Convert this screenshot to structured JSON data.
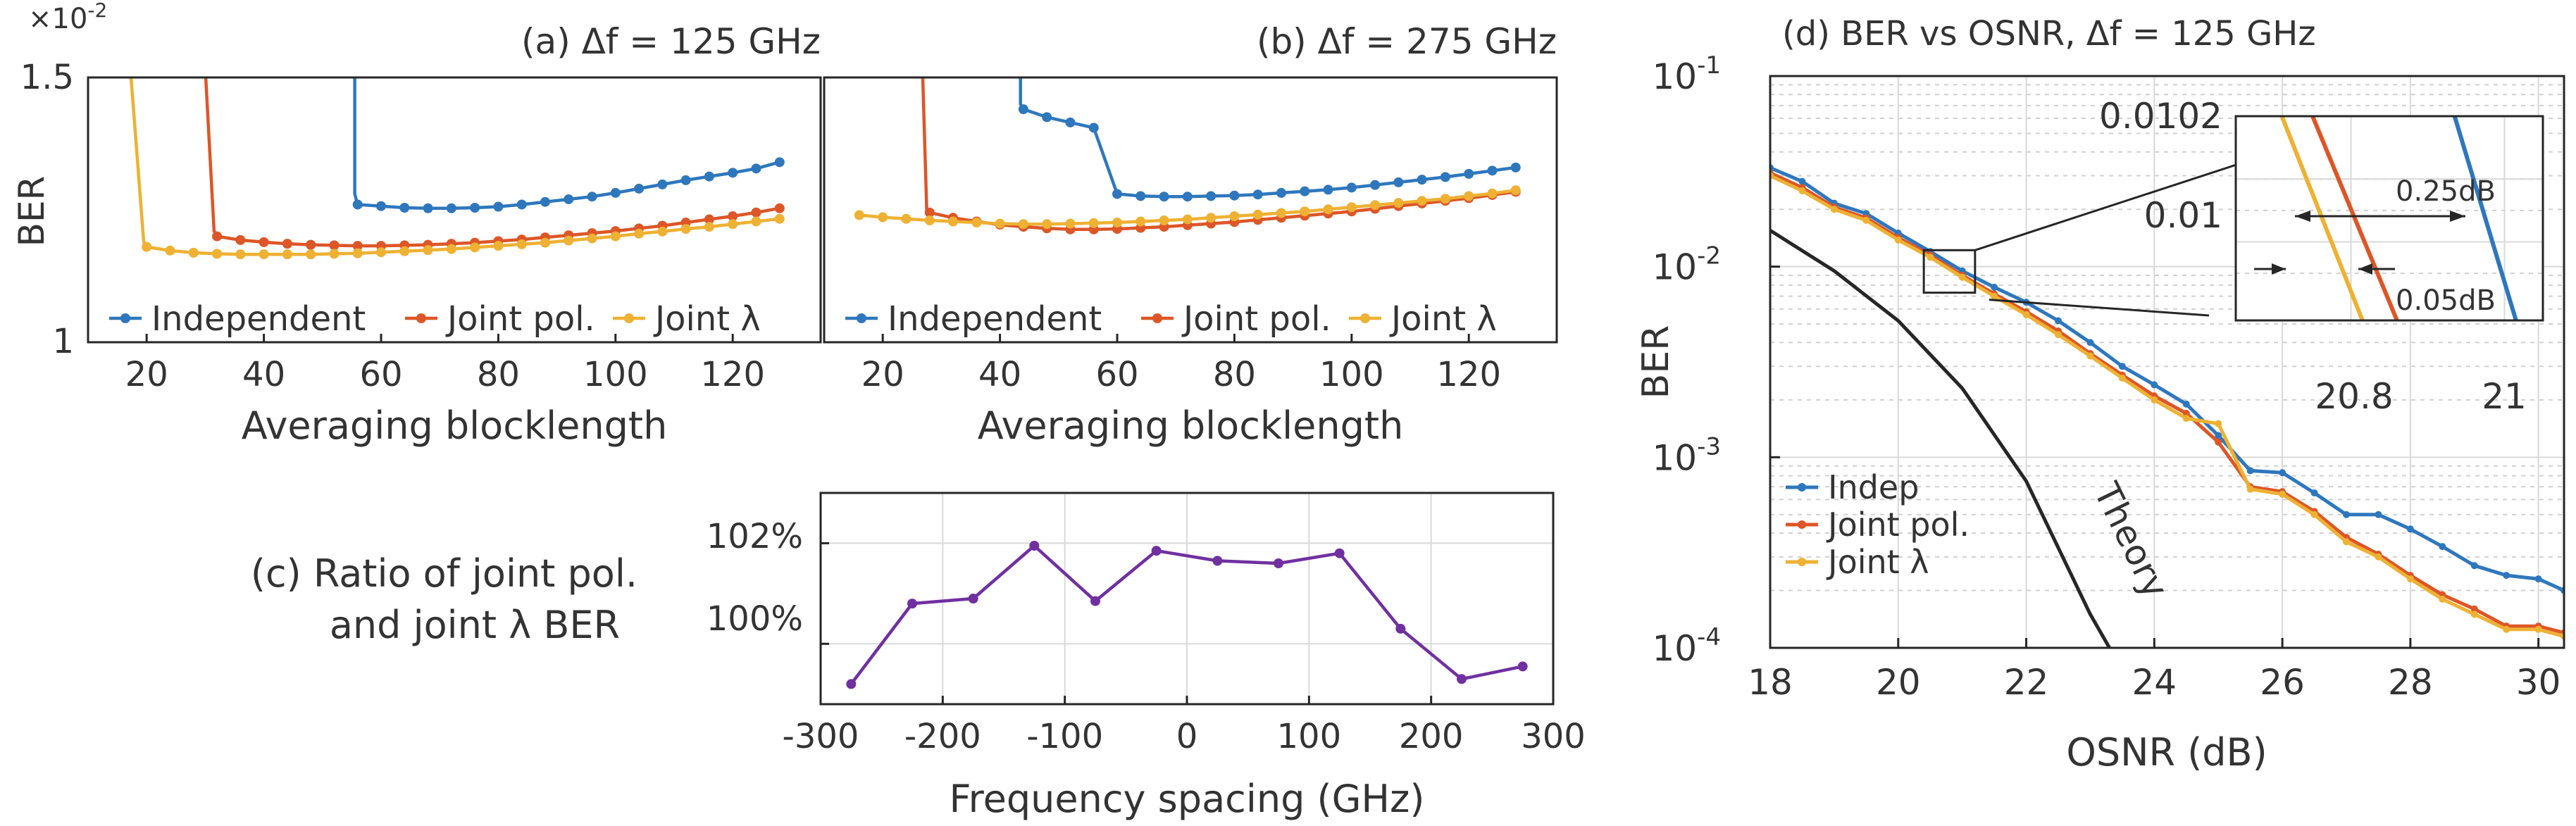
{
  "colors": {
    "independent": "#2E77BD",
    "joint_pol": "#DD5627",
    "joint_lambda": "#EEB133",
    "ratio": "#7030A0",
    "theory": "#262626",
    "grid": "#d9d9d9",
    "axis": "#262626"
  },
  "chart_data": [
    {
      "id": "a",
      "type": "line",
      "title": "(a) Δf = 125 GHz",
      "xlabel": "Averaging blocklength",
      "ylabel": "BER",
      "y_multiplier": "×10",
      "y_multiplier_exp": "-2",
      "xlim": [
        10,
        135
      ],
      "ylim": [
        1.0,
        1.5
      ],
      "xticks": [
        20,
        40,
        60,
        80,
        100,
        120
      ],
      "yticks": [
        1,
        1.5
      ],
      "ytick_labels": [
        "1",
        "1.5"
      ],
      "grid": false,
      "legend_position": "bottom",
      "series": [
        {
          "name": "Independent",
          "color_key": "independent",
          "steep": {
            "x": [
              55.5,
              55.5
            ],
            "y": [
              1.62,
              1.28
            ]
          },
          "x": [
            56,
            60,
            64,
            68,
            72,
            76,
            80,
            84,
            88,
            92,
            96,
            100,
            104,
            108,
            112,
            116,
            120,
            124,
            128
          ],
          "y": [
            1.26,
            1.257,
            1.254,
            1.253,
            1.253,
            1.254,
            1.256,
            1.26,
            1.265,
            1.27,
            1.275,
            1.282,
            1.29,
            1.298,
            1.306,
            1.313,
            1.32,
            1.328,
            1.34
          ]
        },
        {
          "name": "Joint pol.",
          "color_key": "joint_pol",
          "steep": {
            "x": [
              29.5,
              31.5
            ],
            "y": [
              1.62,
              1.21
            ]
          },
          "x": [
            32,
            36,
            40,
            44,
            48,
            52,
            56,
            60,
            64,
            68,
            72,
            76,
            80,
            84,
            88,
            92,
            96,
            100,
            104,
            108,
            112,
            116,
            120,
            124,
            128
          ],
          "y": [
            1.2,
            1.193,
            1.189,
            1.186,
            1.184,
            1.183,
            1.182,
            1.182,
            1.183,
            1.184,
            1.186,
            1.188,
            1.191,
            1.194,
            1.198,
            1.202,
            1.206,
            1.21,
            1.215,
            1.22,
            1.226,
            1.232,
            1.238,
            1.245,
            1.253
          ]
        },
        {
          "name": "Joint λ",
          "color_key": "joint_lambda",
          "steep": {
            "x": [
              16.5,
              19.5
            ],
            "y": [
              1.62,
              1.19
            ]
          },
          "x": [
            20,
            24,
            28,
            32,
            36,
            40,
            44,
            48,
            52,
            56,
            60,
            64,
            68,
            72,
            76,
            80,
            84,
            88,
            92,
            96,
            100,
            104,
            108,
            112,
            116,
            120,
            124,
            128
          ],
          "y": [
            1.18,
            1.173,
            1.169,
            1.167,
            1.166,
            1.166,
            1.166,
            1.166,
            1.167,
            1.168,
            1.17,
            1.172,
            1.174,
            1.176,
            1.179,
            1.182,
            1.185,
            1.188,
            1.192,
            1.196,
            1.2,
            1.205,
            1.209,
            1.214,
            1.218,
            1.223,
            1.228,
            1.233
          ]
        }
      ]
    },
    {
      "id": "b",
      "type": "line",
      "title": "(b) Δf = 275 GHz",
      "xlabel": "Averaging blocklength",
      "ylabel": "",
      "xlim": [
        10,
        135
      ],
      "ylim": [
        1.0,
        1.5
      ],
      "xticks": [
        20,
        40,
        60,
        80,
        100,
        120
      ],
      "grid": false,
      "legend_position": "bottom",
      "series": [
        {
          "name": "Independent",
          "color_key": "independent",
          "steep": {
            "x": [
              43.5,
              43.5
            ],
            "y": [
              1.62,
              1.45
            ]
          },
          "x": [
            44,
            48,
            52,
            56,
            60,
            64,
            68,
            72,
            76,
            80,
            84,
            88,
            92,
            96,
            100,
            104,
            108,
            112,
            116,
            120,
            124,
            128
          ],
          "y": [
            1.44,
            1.425,
            1.415,
            1.405,
            1.28,
            1.276,
            1.275,
            1.275,
            1.276,
            1.277,
            1.279,
            1.282,
            1.285,
            1.288,
            1.292,
            1.297,
            1.302,
            1.307,
            1.312,
            1.318,
            1.324,
            1.33
          ]
        },
        {
          "name": "Joint pol.",
          "color_key": "joint_pol",
          "steep": {
            "x": [
              26.5,
              27.5
            ],
            "y": [
              1.62,
              1.25
            ]
          },
          "x": [
            28,
            32,
            36,
            40,
            44,
            48,
            52,
            56,
            60,
            64,
            68,
            72,
            76,
            80,
            84,
            88,
            92,
            96,
            100,
            104,
            108,
            112,
            116,
            120,
            124,
            128
          ],
          "y": [
            1.245,
            1.235,
            1.228,
            1.222,
            1.218,
            1.215,
            1.213,
            1.213,
            1.214,
            1.216,
            1.218,
            1.221,
            1.224,
            1.227,
            1.231,
            1.235,
            1.239,
            1.243,
            1.247,
            1.252,
            1.257,
            1.262,
            1.267,
            1.272,
            1.278,
            1.284
          ]
        },
        {
          "name": "Joint λ",
          "color_key": "joint_lambda",
          "steep": {
            "x": [
              16,
              16
            ],
            "y": [
              1.24,
              1.24
            ]
          },
          "x": [
            16,
            20,
            24,
            28,
            32,
            36,
            40,
            44,
            48,
            52,
            56,
            60,
            64,
            68,
            72,
            76,
            80,
            84,
            88,
            92,
            96,
            100,
            104,
            108,
            112,
            116,
            120,
            124,
            128
          ],
          "y": [
            1.24,
            1.236,
            1.233,
            1.23,
            1.228,
            1.226,
            1.224,
            1.223,
            1.223,
            1.224,
            1.225,
            1.226,
            1.228,
            1.23,
            1.232,
            1.235,
            1.238,
            1.241,
            1.244,
            1.247,
            1.251,
            1.255,
            1.259,
            1.263,
            1.267,
            1.271,
            1.276,
            1.281,
            1.287
          ]
        }
      ]
    },
    {
      "id": "c",
      "type": "line",
      "title": "(c) Ratio of joint pol.",
      "title_line2": "and joint λ BER",
      "xlabel": "Frequency spacing (GHz)",
      "ylabel": "",
      "xlim": [
        -300,
        300
      ],
      "ylim": [
        98.8,
        103
      ],
      "xticks": [
        -300,
        -200,
        -100,
        0,
        100,
        200,
        300
      ],
      "yticks": [
        100,
        102
      ],
      "ytick_labels": [
        "100%",
        "102%"
      ],
      "grid": true,
      "series": [
        {
          "name": "Ratio",
          "color_key": "ratio",
          "x": [
            -275,
            -225,
            -175,
            -125,
            -75,
            -25,
            25,
            75,
            125,
            175,
            225,
            275
          ],
          "y": [
            99.2,
            100.8,
            100.9,
            101.95,
            100.85,
            101.85,
            101.65,
            101.6,
            101.8,
            100.3,
            99.3,
            99.55
          ]
        }
      ]
    },
    {
      "id": "d",
      "type": "line",
      "title": "(d) BER vs OSNR, Δf = 125 GHz",
      "xlabel": "OSNR (dB)",
      "ylabel": "BER",
      "yscale": "log",
      "xlim": [
        18,
        30.4
      ],
      "ylim": [
        0.0001,
        0.1
      ],
      "xticks": [
        18,
        20,
        22,
        24,
        26,
        28,
        30
      ],
      "yticks_exp": [
        -1,
        -2,
        -3,
        -4
      ],
      "ytick_base": "10",
      "grid": true,
      "legend_position": "bottom-left",
      "series": [
        {
          "name": "Indep",
          "color_key": "independent",
          "x": [
            18,
            18.5,
            19,
            19.5,
            20,
            20.5,
            21,
            21.5,
            22,
            22.5,
            23,
            23.5,
            24,
            24.5,
            25,
            25.5,
            26,
            26.5,
            27,
            27.5,
            28,
            28.5,
            29,
            29.5,
            30,
            30.4
          ],
          "y": [
            0.033,
            0.028,
            0.0215,
            0.019,
            0.015,
            0.012,
            0.0095,
            0.0078,
            0.0065,
            0.0052,
            0.004,
            0.003,
            0.0024,
            0.0019,
            0.0013,
            0.00085,
            0.00083,
            0.00065,
            0.0005,
            0.0005,
            0.00042,
            0.00034,
            0.00027,
            0.00024,
            0.00023,
            0.0002
          ]
        },
        {
          "name": "Joint pol.",
          "color_key": "joint_pol",
          "x": [
            18,
            18.5,
            19,
            19.5,
            20,
            20.5,
            21,
            21.5,
            22,
            22.5,
            23,
            23.5,
            24,
            24.5,
            25,
            25.5,
            26,
            26.5,
            27,
            27.5,
            28,
            28.5,
            29,
            29.5,
            30,
            30.4
          ],
          "y": [
            0.031,
            0.026,
            0.0205,
            0.018,
            0.0142,
            0.0115,
            0.009,
            0.0072,
            0.0058,
            0.0046,
            0.0035,
            0.0027,
            0.0021,
            0.0017,
            0.0012,
            0.0007,
            0.00066,
            0.00052,
            0.00038,
            0.00031,
            0.00024,
            0.00019,
            0.00016,
            0.00013,
            0.00013,
            0.00012
          ]
        },
        {
          "name": "Joint λ",
          "color_key": "joint_lambda",
          "x": [
            18,
            18.5,
            19,
            19.5,
            20,
            20.5,
            21,
            21.5,
            22,
            22.5,
            23,
            23.5,
            24,
            24.5,
            25,
            25.5,
            26,
            26.5,
            27,
            27.5,
            28,
            28.5,
            29,
            29.5,
            30,
            30.4
          ],
          "y": [
            0.03,
            0.025,
            0.02,
            0.0175,
            0.0138,
            0.0112,
            0.0088,
            0.007,
            0.0056,
            0.0044,
            0.0034,
            0.0026,
            0.002,
            0.0016,
            0.0015,
            0.00068,
            0.00064,
            0.0005,
            0.00036,
            0.0003,
            0.00023,
            0.00018,
            0.00015,
            0.000125,
            0.000125,
            0.000115
          ]
        },
        {
          "name": "Theory",
          "color_key": "theory",
          "markers": false,
          "x": [
            18,
            19,
            20,
            21,
            22,
            23,
            23.3
          ],
          "y": [
            0.0155,
            0.0095,
            0.0052,
            0.0023,
            0.00075,
            0.00015,
            0.0001
          ]
        }
      ],
      "theory_label": "Theory",
      "zoom_box_osnr": [
        20.4,
        21.2
      ],
      "zoom_box_ber": [
        0.0073,
        0.0122
      ],
      "inset": {
        "xlim": [
          20.65,
          21.05
        ],
        "ylim": [
          0.00975,
          0.0104
        ],
        "ytick_labels": [
          "0.0102",
          "0.01"
        ],
        "ytick_values": [
          0.0102,
          0.01
        ],
        "xtick_labels": [
          "20.8",
          "21"
        ],
        "xtick_values": [
          20.8,
          21.0
        ],
        "lines": [
          {
            "color_key": "joint_lambda",
            "x": [
              20.71,
              20.815
            ],
            "y": [
              0.0104,
              0.00975
            ]
          },
          {
            "color_key": "joint_pol",
            "x": [
              20.75,
              20.86
            ],
            "y": [
              0.0104,
              0.00975
            ]
          },
          {
            "color_key": "independent",
            "x": [
              20.935,
              21.015
            ],
            "y": [
              0.0104,
              0.00975
            ]
          }
        ],
        "annotations": {
          "gap_large": "0.25dB",
          "gap_small": "0.05dB"
        }
      }
    }
  ]
}
